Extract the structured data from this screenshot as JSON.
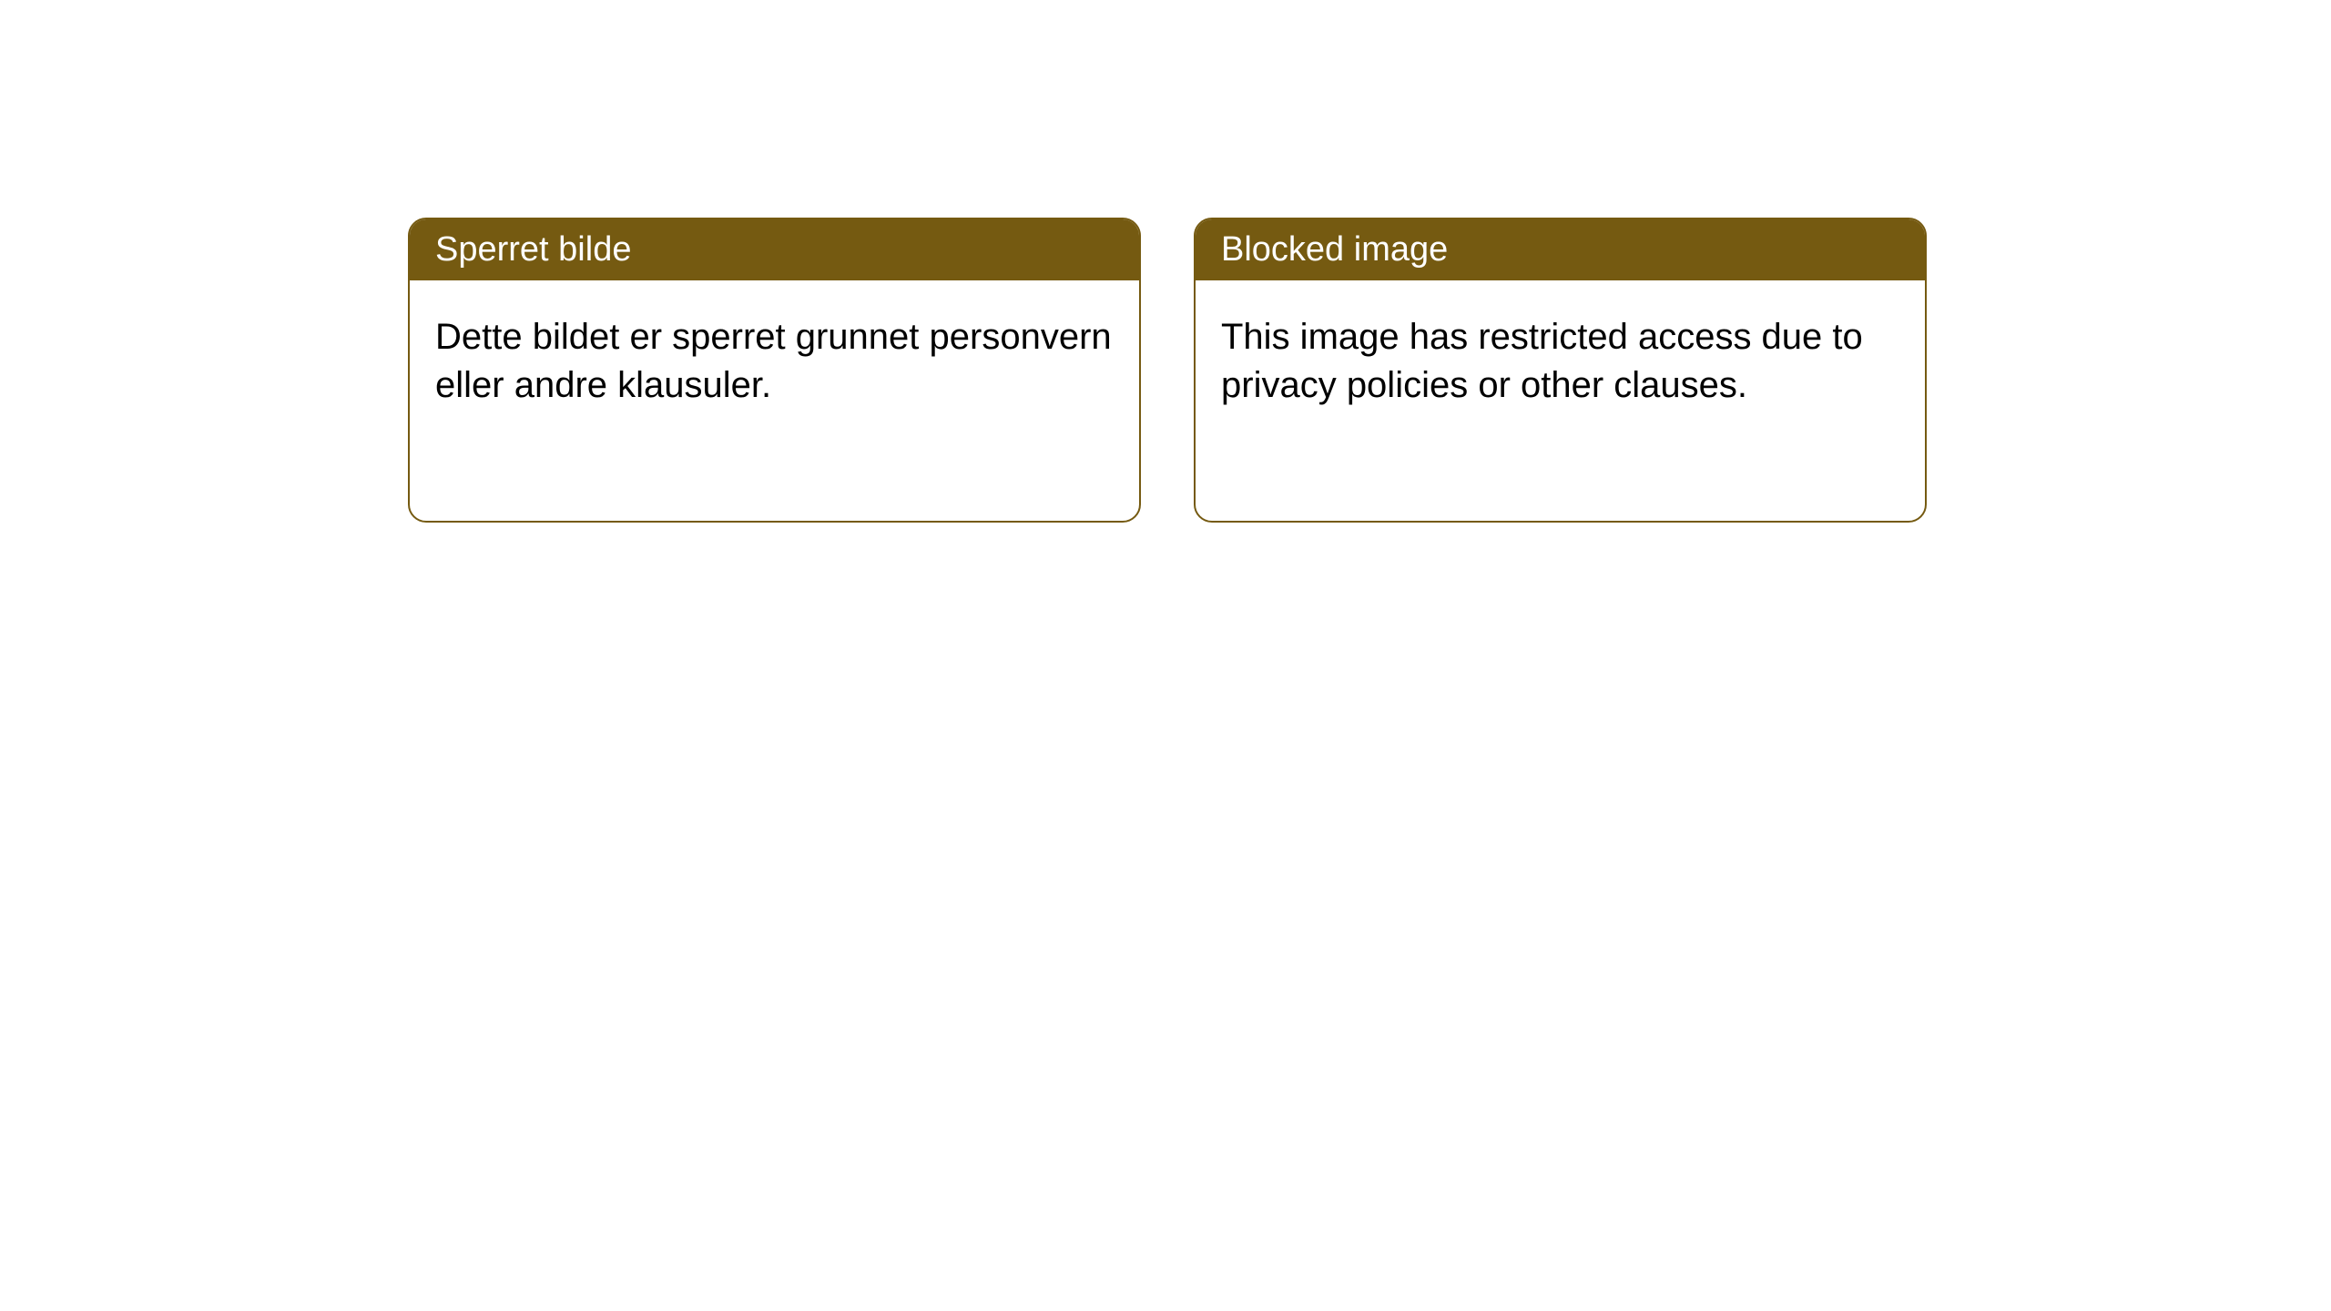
{
  "cards": [
    {
      "title": "Sperret bilde",
      "body": "Dette bildet er sperret grunnet personvern eller andre klausuler."
    },
    {
      "title": "Blocked image",
      "body": "This image has restricted access due to privacy policies or other clauses."
    }
  ],
  "style": {
    "header_background": "#755a11",
    "header_text_color": "#ffffff",
    "border_color": "#755a11",
    "body_background": "#ffffff",
    "body_text_color": "#000000",
    "card_border_radius": 20,
    "title_fontsize": 38,
    "body_fontsize": 40
  }
}
